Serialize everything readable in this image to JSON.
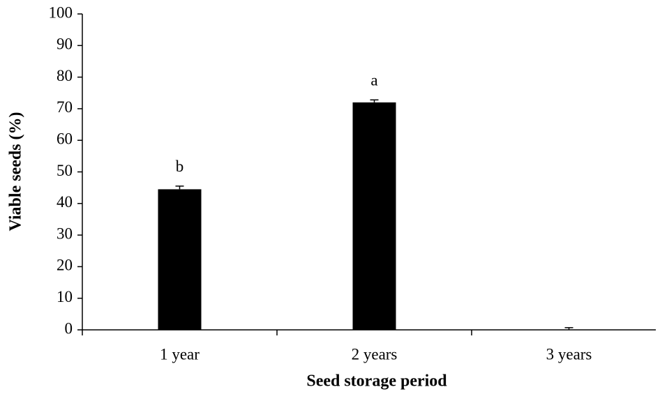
{
  "chart_data": {
    "type": "bar",
    "x_label": "Seed storage period",
    "y_label": "Viable seeds (%)",
    "categories": [
      "1 year",
      "2 years",
      "3 years"
    ],
    "values": [
      44.5,
      72,
      0
    ],
    "errors": [
      1,
      0.8,
      0.7
    ],
    "annotations": [
      "b",
      "a",
      null
    ],
    "color": "#000000",
    "ylim": [
      0,
      100
    ],
    "yticks": [
      0,
      10,
      20,
      30,
      40,
      50,
      60,
      70,
      80,
      90,
      100
    ],
    "grid": false
  }
}
